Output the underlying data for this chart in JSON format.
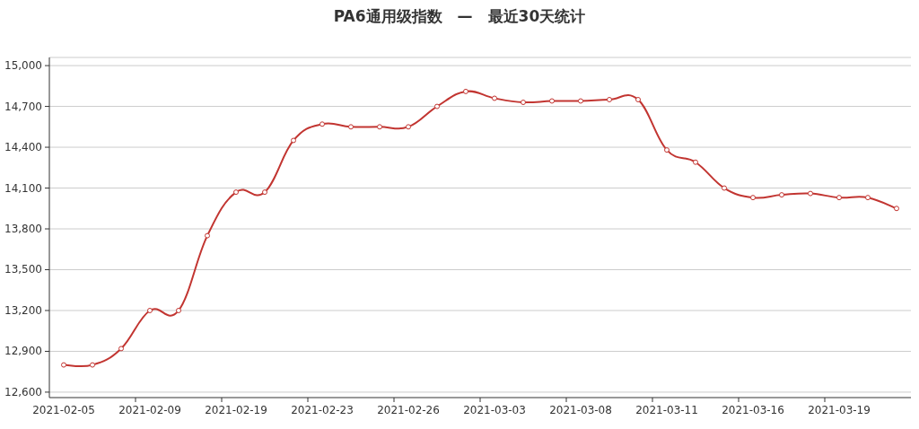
{
  "chart_data": {
    "type": "line",
    "title": "PA6通用级指数　—　最近30天统计",
    "categories": [
      "2021-02-05",
      null,
      null,
      "2021-02-09",
      null,
      null,
      "2021-02-19",
      null,
      null,
      "2021-02-23",
      null,
      null,
      "2021-02-26",
      null,
      null,
      "2021-03-03",
      null,
      null,
      "2021-03-08",
      null,
      null,
      "2021-03-11",
      null,
      null,
      "2021-03-16",
      null,
      null,
      "2021-03-19",
      null,
      null
    ],
    "series": [
      {
        "color": "#c23531",
        "values": [
          12800,
          12800,
          12920,
          13200,
          13200,
          13750,
          14070,
          14070,
          14450,
          14570,
          14550,
          14550,
          14550,
          14700,
          14810,
          14760,
          14730,
          14740,
          14740,
          14750,
          14750,
          14380,
          14290,
          14100,
          14030,
          14050,
          14060,
          14030,
          14030,
          13950
        ]
      }
    ],
    "ylim": [
      12560,
      15060
    ],
    "yticks": [
      {
        "value": 12600,
        "label": "12,600"
      },
      {
        "value": 12900,
        "label": "12,900"
      },
      {
        "value": 13200,
        "label": "13,200"
      },
      {
        "value": 13500,
        "label": "13,500"
      },
      {
        "value": 13800,
        "label": "13,800"
      },
      {
        "value": 14100,
        "label": "14,100"
      },
      {
        "value": 14400,
        "label": "14,400"
      },
      {
        "value": 14700,
        "label": "14,700"
      },
      {
        "value": 15000,
        "label": "15,000"
      }
    ],
    "grid": "y",
    "marker": "circle",
    "line_style": "solid"
  }
}
